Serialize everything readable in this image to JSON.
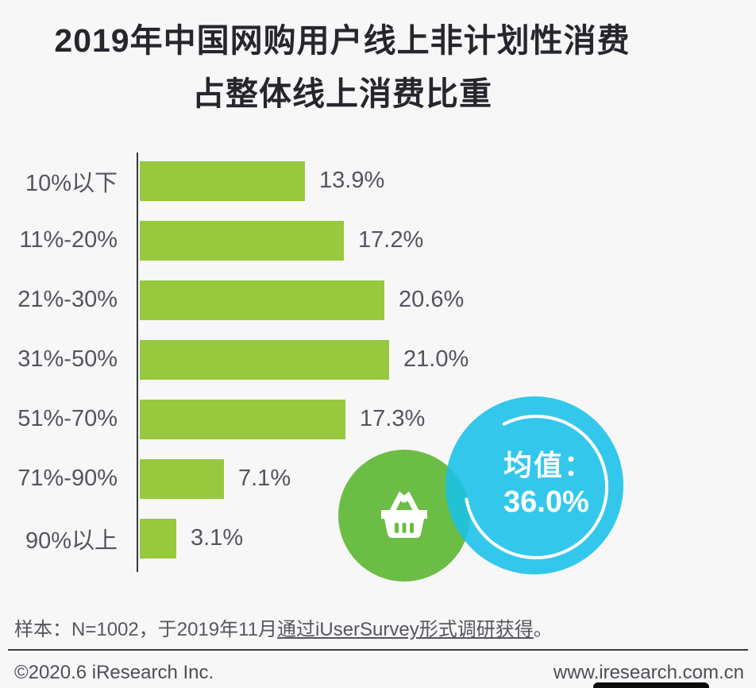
{
  "title": {
    "line1": "2019年中国网购用户线上非计划性消费",
    "line2": "占整体线上消费比重"
  },
  "chart_data": {
    "type": "bar",
    "orientation": "horizontal",
    "title": "2019年中国网购用户线上非计划性消费占整体线上消费比重",
    "categories": [
      "10%以下",
      "11%-20%",
      "21%-30%",
      "31%-50%",
      "51%-70%",
      "71%-90%",
      "90%以上"
    ],
    "values": [
      13.9,
      17.2,
      20.6,
      21.0,
      17.3,
      7.1,
      3.1
    ],
    "value_labels": [
      "13.9%",
      "17.2%",
      "20.6%",
      "21.0%",
      "17.3%",
      "7.1%",
      "3.1%"
    ],
    "xlim": [
      0,
      21.5
    ],
    "grid": false,
    "legend": "none",
    "bar_color": "#97c83e",
    "average": {
      "label": "均值：",
      "value": "36.0%"
    }
  },
  "average_badge": {
    "label": "均值：",
    "value": "36.0%",
    "circle_color": "#18c2e8",
    "ring_color": "#ffffff"
  },
  "basket_badge": {
    "icon": "shopping-basket-icon",
    "circle_color": "#6cbd45",
    "icon_color": "#ffffff"
  },
  "footnote": {
    "prefix": "样本：N=1002，于2019年11月",
    "underlined": "通过iUserSurvey形式调研获得",
    "suffix": "。"
  },
  "footer": {
    "copyright": "©2020.6 iResearch Inc.",
    "website": "www.iresearch.com.cn"
  },
  "colors": {
    "background": "#f7f7f8",
    "title_text": "#26262d",
    "label_text": "#54545e",
    "axis": "#3a3a40",
    "bar_green": "#97c83e",
    "circle_green": "#6cbd45",
    "circle_cyan": "#18c2e8"
  }
}
